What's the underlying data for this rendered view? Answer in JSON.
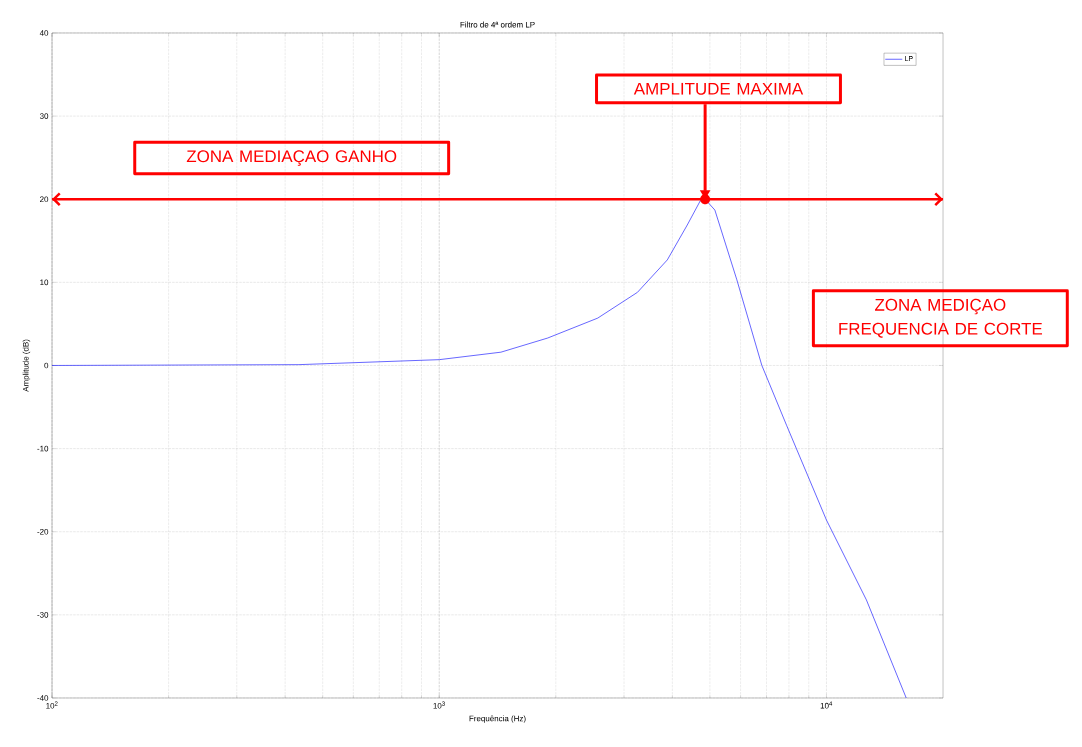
{
  "chart_data": {
    "type": "line",
    "title": "Filtro de 4ª ordem LP",
    "xlabel": "Frequência (Hz)",
    "ylabel": "Amplitude (dB)",
    "series": [
      {
        "name": "LP",
        "color": "#0000ff",
        "x": [
          100,
          434,
          1000,
          1443,
          1905,
          2566,
          3250,
          3882,
          4370,
          4720,
          4860,
          5150,
          5870,
          6810,
          7890,
          10000,
          12680,
          16070
        ],
        "values": [
          0,
          0.1,
          0.7,
          1.6,
          3.3,
          5.7,
          8.8,
          12.7,
          16.9,
          19.8,
          20,
          18.7,
          10.3,
          0,
          -7.2,
          -18.6,
          -28.2,
          -40
        ]
      }
    ],
    "log": "x",
    "xlim": [
      100,
      20000
    ],
    "ylim": [
      -40,
      40
    ],
    "xticks": [
      {
        "value": 100,
        "label": "10$^{2}$"
      },
      {
        "value": 1000,
        "label": "10$^{3}$"
      },
      {
        "value": 10000,
        "label": "10$^{4}$"
      }
    ],
    "yticks": [
      -40,
      -30,
      -20,
      -10,
      0,
      10,
      20,
      30,
      40
    ],
    "grid": true,
    "legend": "top right",
    "line_style": "solid",
    "marker": "none",
    "ref_lines": [
      {
        "axis": "y",
        "value": 20,
        "color": "#ff0000"
      }
    ],
    "annotations": [
      "ZONA MEDIAÇAO GANHO",
      {
        "text": "AMPLITUDE MAXIMA",
        "x": 4860,
        "y": 20
      },
      "ZONA MEDIÇAO FREQUENCIA  DE CORTE"
    ]
  }
}
